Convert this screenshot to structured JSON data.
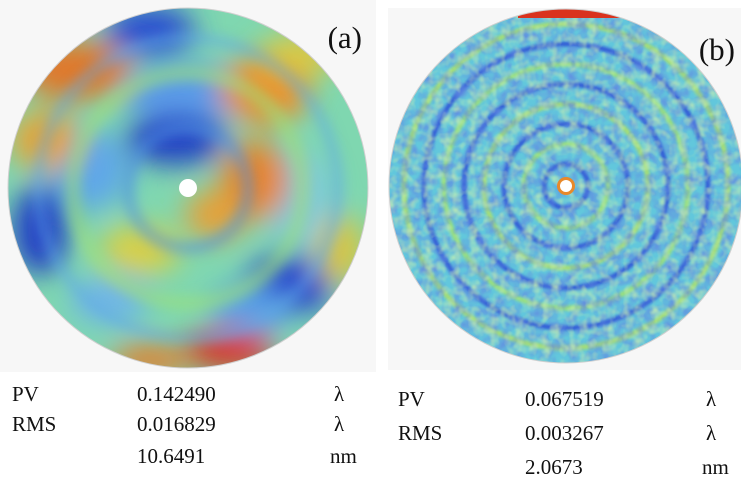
{
  "panels": [
    {
      "label": "(a)",
      "map_colors": [
        "#1f3fbf",
        "#4d8fe0",
        "#54d6e4",
        "#9ce07a",
        "#d6d342",
        "#e8892a",
        "#d9331e"
      ],
      "stats": [
        {
          "name": "PV",
          "value": "0.142490",
          "unit": "λ"
        },
        {
          "name": "RMS",
          "value": "0.016829",
          "unit": "λ"
        },
        {
          "name": "",
          "value": "10.6491",
          "unit": "nm"
        }
      ]
    },
    {
      "label": "(b)",
      "map_colors": [
        "#1f3fbf",
        "#4d8fe0",
        "#54d6e4",
        "#9ce07a",
        "#d6d342",
        "#e8892a",
        "#d9331e"
      ],
      "stats": [
        {
          "name": "PV",
          "value": "0.067519",
          "unit": "λ"
        },
        {
          "name": "RMS",
          "value": "0.003267",
          "unit": "λ"
        },
        {
          "name": "",
          "value": "2.0673",
          "unit": "nm"
        }
      ]
    }
  ]
}
